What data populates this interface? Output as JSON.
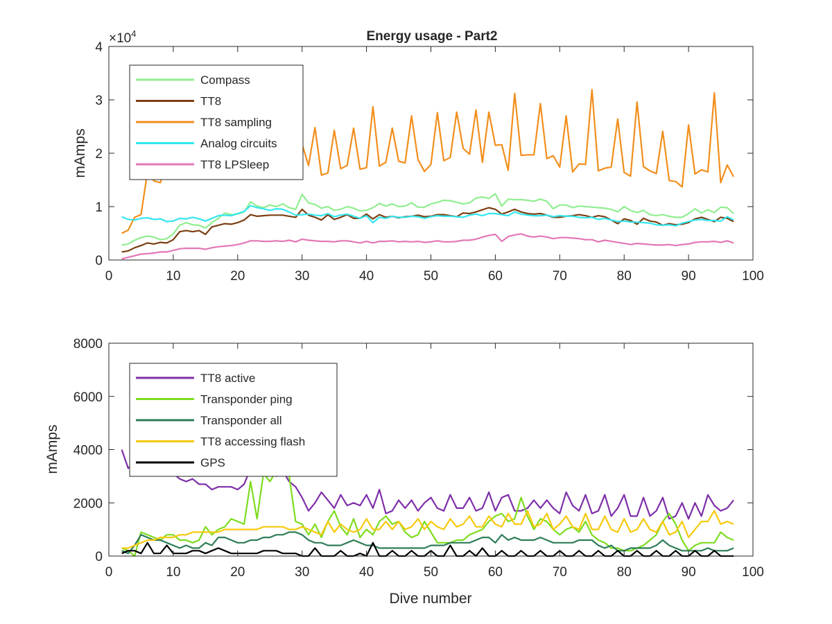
{
  "title": "Energy usage - Part2",
  "chart_data": [
    {
      "type": "line",
      "title": "Energy usage - Part2",
      "xlabel": "",
      "ylabel": "mAmps",
      "xlim": [
        0,
        100
      ],
      "ylim": [
        0,
        40000
      ],
      "xticks": [
        0,
        10,
        20,
        30,
        40,
        50,
        60,
        70,
        80,
        90,
        100
      ],
      "yticks": [
        0,
        10000,
        20000,
        30000,
        40000
      ],
      "ytick_labels": [
        "0",
        "1",
        "2",
        "3",
        "4"
      ],
      "y_exponent_label": "×10",
      "y_exponent_power": "4",
      "grid": false,
      "legend_position": "top-left",
      "x_start": 2,
      "series": [
        {
          "name": "Compass",
          "color": "#90ee90",
          "values": [
            2800,
            3000,
            3700,
            4200,
            4500,
            4300,
            3800,
            4000,
            4900,
            6500,
            7000,
            6600,
            6500,
            6000,
            7000,
            7800,
            8800,
            8500,
            8600,
            9000,
            10900,
            10100,
            9800,
            10300,
            10000,
            10500,
            9800,
            9500,
            12300,
            10700,
            10400,
            9700,
            10000,
            9300,
            9500,
            10000,
            9700,
            9200,
            9300,
            9800,
            10600,
            10100,
            10500,
            10000,
            10100,
            10700,
            9900,
            9900,
            10500,
            10800,
            11200,
            11100,
            10800,
            10500,
            10700,
            11600,
            11800,
            11500,
            12400,
            10100,
            11400,
            11300,
            11300,
            11200,
            11000,
            11400,
            11000,
            9600,
            10300,
            10300,
            9800,
            10100,
            10000,
            9900,
            9800,
            9700,
            9500,
            9000,
            10000,
            9300,
            8900,
            9300,
            8500,
            8300,
            8500,
            8200,
            8000,
            8000,
            8700,
            9600,
            8800,
            9400,
            8900,
            9900,
            9800,
            8700
          ]
        },
        {
          "name": "TT8",
          "color": "#7b3f13",
          "values": [
            1500,
            1700,
            2300,
            2700,
            3200,
            3000,
            3300,
            3200,
            3800,
            5300,
            5500,
            5300,
            5500,
            4800,
            6200,
            6500,
            6800,
            6700,
            7000,
            7500,
            8500,
            8200,
            8300,
            8400,
            8400,
            8400,
            8200,
            8000,
            9500,
            8400,
            8000,
            7500,
            8500,
            7600,
            8000,
            8500,
            7800,
            7800,
            8600,
            7700,
            8500,
            8000,
            8200,
            7900,
            8100,
            8200,
            8400,
            8100,
            8200,
            8500,
            8500,
            8300,
            8100,
            8800,
            8700,
            9000,
            9400,
            9800,
            9500,
            8600,
            9000,
            9500,
            9000,
            8700,
            8600,
            8700,
            8400,
            8000,
            8000,
            8200,
            8300,
            8500,
            8300,
            8000,
            8300,
            8100,
            7500,
            6800,
            7700,
            7400,
            6700,
            7800,
            7300,
            7100,
            6500,
            6800,
            6600,
            6700,
            7000,
            7700,
            8000,
            7600,
            7200,
            8000,
            7800,
            7200
          ]
        },
        {
          "name": "TT8 sampling",
          "color": "#f28e1c",
          "values": [
            5000,
            5600,
            8000,
            8500,
            16500,
            14800,
            14500,
            19000,
            17700,
            17700,
            19000,
            18000,
            18700,
            17300,
            19600,
            17900,
            19500,
            19500,
            20000,
            18700,
            21500,
            20400,
            20200,
            20500,
            19300,
            20500,
            19000,
            21500,
            21700,
            17700,
            24800,
            15900,
            16300,
            24300,
            17100,
            17700,
            24700,
            17000,
            17300,
            28700,
            17600,
            18300,
            24700,
            18500,
            18200,
            27000,
            18800,
            16600,
            17900,
            27600,
            18600,
            19200,
            27700,
            20900,
            19800,
            28100,
            18300,
            27700,
            21500,
            21600,
            16800,
            31200,
            19600,
            19700,
            19700,
            29300,
            19000,
            19500,
            17400,
            27000,
            16500,
            18000,
            17900,
            31900,
            16700,
            17200,
            17400,
            26400,
            16400,
            15700,
            29600,
            17500,
            16700,
            16200,
            24100,
            14900,
            14700,
            13700,
            25300,
            16100,
            16900,
            16500,
            31300,
            14500,
            17800,
            15600
          ]
        },
        {
          "name": "Analog circuits",
          "color": "#33e6f0",
          "values": [
            8100,
            7600,
            7500,
            7800,
            7900,
            7600,
            7700,
            7200,
            7300,
            7800,
            7700,
            8000,
            7700,
            7300,
            7800,
            8300,
            8400,
            8300,
            8700,
            9100,
            10200,
            9800,
            9600,
            9300,
            9600,
            9500,
            9000,
            8400,
            8500,
            8600,
            8400,
            8300,
            8700,
            8100,
            8400,
            8600,
            8200,
            7800,
            8300,
            7000,
            8000,
            7800,
            8200,
            8000,
            8000,
            8200,
            8100,
            7800,
            8100,
            8300,
            8200,
            8200,
            8100,
            8000,
            8400,
            8600,
            8300,
            8700,
            8700,
            8500,
            8300,
            9000,
            8600,
            8400,
            8300,
            8300,
            8400,
            8100,
            8300,
            8200,
            8200,
            8000,
            7900,
            8000,
            7600,
            7800,
            7500,
            7200,
            7300,
            7100,
            7100,
            7000,
            6900,
            6600,
            6500,
            6600,
            6400,
            6900,
            7200,
            7500,
            7600,
            7400,
            7400,
            7300,
            8100,
            7500
          ]
        },
        {
          "name": "TT8 LPSleep",
          "color": "#e377b6",
          "values": [
            200,
            500,
            800,
            1100,
            1200,
            1300,
            1500,
            1500,
            1800,
            2100,
            2200,
            2200,
            2200,
            2000,
            2300,
            2500,
            2600,
            2700,
            2900,
            3200,
            3600,
            3600,
            3500,
            3500,
            3600,
            3500,
            3700,
            3400,
            3900,
            3700,
            3600,
            3500,
            3500,
            3400,
            3600,
            3600,
            3400,
            3200,
            3500,
            3200,
            3500,
            3500,
            3600,
            3400,
            3500,
            3400,
            3500,
            3300,
            3400,
            3600,
            3400,
            3400,
            3500,
            3700,
            3700,
            3900,
            4300,
            4600,
            4800,
            3500,
            4400,
            4700,
            4900,
            4500,
            4300,
            4500,
            4300,
            4000,
            4200,
            4200,
            4100,
            4000,
            3800,
            3800,
            3400,
            3700,
            3500,
            3300,
            3100,
            2900,
            3100,
            3000,
            2900,
            2800,
            2800,
            2900,
            2700,
            2900,
            3000,
            3300,
            3400,
            3400,
            3500,
            3300,
            3600,
            3200
          ]
        }
      ]
    },
    {
      "type": "line",
      "title": "",
      "xlabel": "Dive number",
      "ylabel": "mAmps",
      "xlim": [
        0,
        100
      ],
      "ylim": [
        0,
        8000
      ],
      "xticks": [
        0,
        10,
        20,
        30,
        40,
        50,
        60,
        70,
        80,
        90,
        100
      ],
      "yticks": [
        0,
        2000,
        4000,
        6000,
        8000
      ],
      "ytick_labels": [
        "0",
        "2000",
        "4000",
        "6000",
        "8000"
      ],
      "grid": false,
      "legend_position": "top-left",
      "x_start": 2,
      "series": [
        {
          "name": "TT8 active",
          "color": "#7e2fa8",
          "values": [
            4000,
            3300,
            3500,
            3600,
            3500,
            3600,
            3400,
            3300,
            3100,
            2900,
            2800,
            2900,
            2700,
            2700,
            2500,
            2600,
            2600,
            2600,
            2500,
            2700,
            3300,
            3200,
            3900,
            3400,
            3000,
            3200,
            2800,
            2600,
            2200,
            1700,
            2000,
            2400,
            2100,
            1800,
            2300,
            1900,
            2000,
            1900,
            2300,
            1800,
            2500,
            1600,
            1700,
            2100,
            1800,
            2100,
            1700,
            2000,
            2200,
            1800,
            1700,
            2300,
            1800,
            1800,
            2200,
            1700,
            1800,
            2400,
            1700,
            2200,
            2300,
            1700,
            1700,
            1800,
            2100,
            1800,
            2100,
            1800,
            1600,
            2400,
            1900,
            1700,
            2300,
            1600,
            1700,
            2300,
            1500,
            1800,
            2300,
            1500,
            1500,
            2200,
            1500,
            1700,
            2200,
            1400,
            1500,
            2000,
            1400,
            2000,
            1500,
            2300,
            1900,
            1700,
            1800,
            2100
          ]
        },
        {
          "name": "Transponder ping",
          "color": "#7ddc1f",
          "values": [
            300,
            200,
            0,
            900,
            800,
            700,
            600,
            800,
            800,
            600,
            600,
            500,
            600,
            1100,
            800,
            1000,
            1100,
            1400,
            1300,
            1200,
            2800,
            1400,
            3100,
            2800,
            3200,
            3200,
            3000,
            1300,
            1200,
            800,
            1200,
            700,
            1300,
            1700,
            1100,
            800,
            1400,
            700,
            1000,
            800,
            1300,
            1500,
            1200,
            1300,
            900,
            700,
            800,
            1300,
            900,
            500,
            500,
            500,
            600,
            600,
            800,
            900,
            1000,
            1300,
            1500,
            1600,
            1300,
            1400,
            2200,
            1500,
            1000,
            1400,
            1300,
            1000,
            800,
            1000,
            1100,
            900,
            1300,
            800,
            600,
            500,
            300,
            300,
            200,
            200,
            300,
            400,
            600,
            800,
            1300,
            1600,
            1200,
            600,
            200,
            400,
            500,
            500,
            500,
            900,
            700,
            600
          ]
        },
        {
          "name": "Transponder all",
          "color": "#2e7d57",
          "values": [
            200,
            100,
            400,
            800,
            700,
            600,
            600,
            500,
            400,
            300,
            400,
            300,
            300,
            500,
            400,
            700,
            700,
            600,
            500,
            500,
            600,
            600,
            700,
            700,
            800,
            800,
            900,
            900,
            800,
            600,
            500,
            500,
            400,
            400,
            400,
            500,
            600,
            500,
            400,
            400,
            300,
            300,
            300,
            300,
            300,
            300,
            300,
            300,
            400,
            400,
            400,
            500,
            500,
            500,
            500,
            600,
            700,
            700,
            500,
            800,
            600,
            700,
            600,
            600,
            600,
            700,
            600,
            500,
            500,
            500,
            500,
            600,
            600,
            600,
            400,
            300,
            400,
            200,
            200,
            300,
            300,
            300,
            300,
            400,
            600,
            400,
            300,
            200,
            200,
            200,
            200,
            300,
            200,
            200,
            200,
            300
          ]
        },
        {
          "name": "TT8 accessing flash",
          "color": "#f7c90d",
          "values": [
            300,
            300,
            400,
            500,
            600,
            600,
            700,
            700,
            700,
            800,
            800,
            900,
            900,
            900,
            900,
            900,
            1000,
            1000,
            1000,
            1000,
            1000,
            1000,
            1100,
            1100,
            1100,
            1100,
            1000,
            1000,
            1100,
            1000,
            900,
            800,
            1300,
            900,
            1200,
            1000,
            900,
            1000,
            1400,
            1000,
            1000,
            1300,
            1000,
            1300,
            1000,
            1100,
            1400,
            1000,
            1300,
            1100,
            1000,
            1400,
            1100,
            1200,
            1500,
            1100,
            1100,
            1500,
            1200,
            1100,
            1600,
            1200,
            1200,
            1700,
            1100,
            1200,
            1600,
            1000,
            1200,
            1500,
            1100,
            1000,
            1600,
            1000,
            1000,
            1500,
            1000,
            900,
            1400,
            900,
            1000,
            1400,
            1000,
            900,
            1300,
            800,
            900,
            1300,
            700,
            1000,
            1300,
            1300,
            1700,
            1200,
            1300,
            1200
          ]
        },
        {
          "name": "GPS",
          "color": "#000000",
          "values": [
            100,
            200,
            200,
            100,
            500,
            100,
            100,
            400,
            100,
            100,
            100,
            200,
            200,
            100,
            200,
            300,
            200,
            100,
            100,
            100,
            100,
            100,
            200,
            200,
            200,
            100,
            100,
            100,
            0,
            0,
            300,
            0,
            0,
            0,
            200,
            0,
            0,
            100,
            0,
            500,
            0,
            0,
            200,
            0,
            0,
            200,
            0,
            0,
            200,
            0,
            0,
            400,
            0,
            0,
            200,
            0,
            300,
            0,
            0,
            200,
            0,
            0,
            200,
            0,
            0,
            200,
            0,
            0,
            200,
            0,
            0,
            200,
            0,
            0,
            200,
            0,
            0,
            200,
            0,
            0,
            200,
            0,
            0,
            200,
            0,
            0,
            200,
            0,
            0,
            200,
            0,
            0,
            200,
            0,
            0,
            0
          ]
        }
      ]
    }
  ]
}
